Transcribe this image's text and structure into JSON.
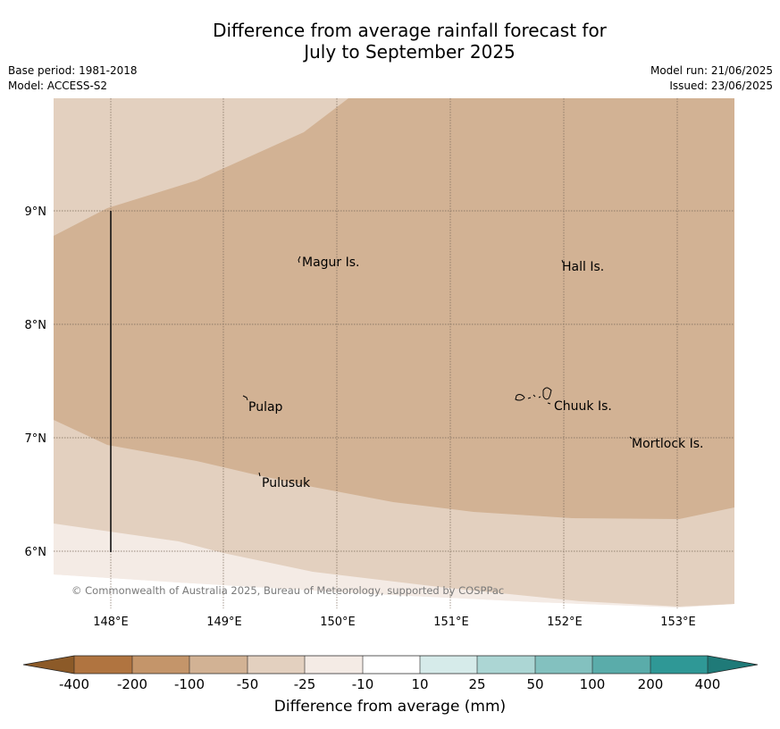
{
  "title": {
    "line1": "Difference from average rainfall forecast for",
    "line2": "July to September 2025"
  },
  "meta": {
    "base_period": "Base period: 1981-2018",
    "model": "Model: ACCESS-S2",
    "model_run": "Model run: 21/06/2025",
    "issued": "Issued: 23/06/2025"
  },
  "map": {
    "lat_ticks": [
      "9°N",
      "8°N",
      "7°N",
      "6°N"
    ],
    "lon_ticks": [
      "148°E",
      "149°E",
      "150°E",
      "151°E",
      "152°E",
      "153°E"
    ],
    "places": {
      "magur": "Magur Is.",
      "hall": "Hall Is.",
      "pulap": "Pulap",
      "chuuk": "Chuuk Is.",
      "mortlock": "Mortlock Is.",
      "pulusuk": "Pulusuk"
    },
    "copyright": "© Commonwealth of Australia 2025, Bureau of Meteorology, supported by COSPPac"
  },
  "colorbar": {
    "label": "Difference from average (mm)",
    "ticks": [
      "-400",
      "-200",
      "-100",
      "-50",
      "-25",
      "-10",
      "10",
      "25",
      "50",
      "100",
      "200",
      "400"
    ],
    "colors": {
      "below_min": "#8c5a28",
      "c1": "#b07440",
      "c2": "#c4956a",
      "c3": "#d2b294",
      "c4": "#e3d0bf",
      "c5": "#f4ebe5",
      "c6": "#ffffff",
      "c7": "#d6ebea",
      "c8": "#acd6d4",
      "c9": "#83c1bf",
      "c10": "#5aacaa",
      "c11": "#2f9896",
      "above_max": "#1f7a78"
    }
  }
}
